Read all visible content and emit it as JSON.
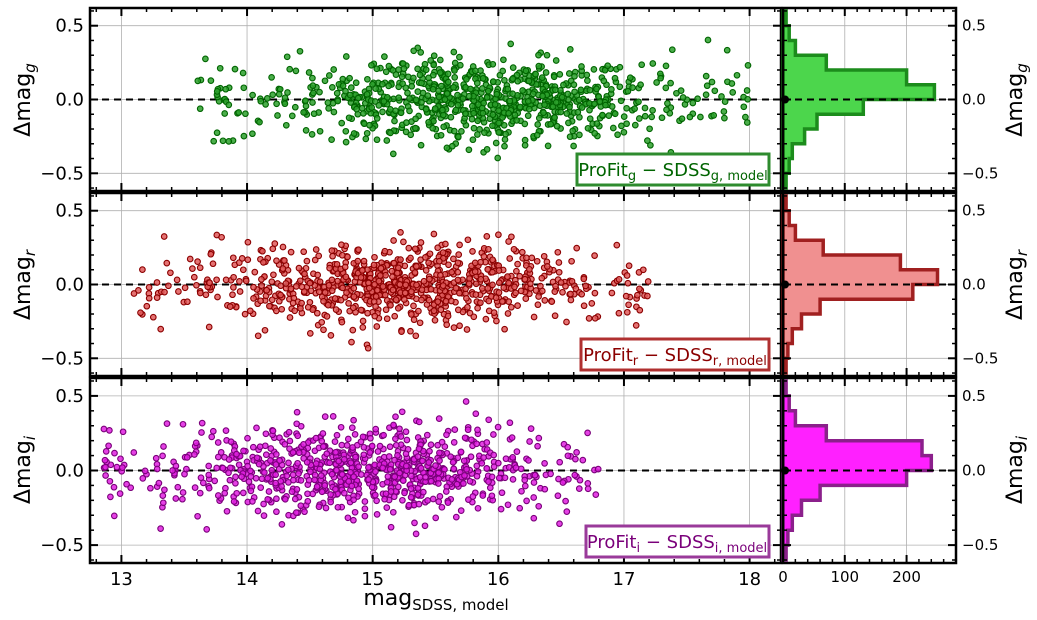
{
  "chart_data": [
    {
      "type": "scatter",
      "panel": "g",
      "ylabel": "Δmag_g",
      "ylabel_main": "Δmag",
      "ylabel_sub": "g",
      "xlim": [
        12.75,
        18.25
      ],
      "ylim": [
        -0.62,
        0.62
      ],
      "yticks": [
        -0.5,
        0.0,
        0.5
      ],
      "ytick_labels": [
        "−0.5",
        "0.0",
        "0.5"
      ],
      "reference_line_y": 0.0,
      "grid": true,
      "legend": {
        "main": "ProFit",
        "main_sub": "g",
        "minus": " − ",
        "ref": "SDSS",
        "ref_sub": "g, model",
        "location": "lower-right"
      },
      "color": "#2ca02c",
      "edge_color": "#006400",
      "approx_points": 900,
      "x_range": [
        13.6,
        18.0
      ],
      "x_peak": 15.8,
      "y_scatter_sigma": 0.14,
      "hist": {
        "bins": [
          -0.6,
          -0.5,
          -0.4,
          -0.3,
          -0.2,
          -0.1,
          0.0,
          0.1,
          0.2,
          0.3,
          0.4,
          0.5,
          0.6
        ],
        "counts": [
          5,
          10,
          15,
          35,
          55,
          130,
          245,
          200,
          70,
          20,
          10,
          5
        ],
        "fill": "#4cd64c",
        "edge": "#1c8c1c"
      }
    },
    {
      "type": "scatter",
      "panel": "r",
      "ylabel": "Δmag_r",
      "ylabel_main": "Δmag",
      "ylabel_sub": "r",
      "xlim": [
        12.75,
        18.25
      ],
      "ylim": [
        -0.62,
        0.62
      ],
      "yticks": [
        -0.5,
        0.0,
        0.5
      ],
      "ytick_labels": [
        "−0.5",
        "0.0",
        "0.5"
      ],
      "reference_line_y": 0.0,
      "grid": true,
      "legend": {
        "main": "ProFit",
        "main_sub": "r",
        "minus": " − ",
        "ref": "SDSS",
        "ref_sub": "r, model",
        "location": "lower-right"
      },
      "color": "#e05a5a",
      "edge_color": "#8b0000",
      "approx_points": 900,
      "x_range": [
        13.1,
        17.2
      ],
      "x_peak": 15.2,
      "y_scatter_sigma": 0.13,
      "hist": {
        "bins": [
          -0.6,
          -0.5,
          -0.4,
          -0.3,
          -0.2,
          -0.1,
          0.0,
          0.1,
          0.2,
          0.3,
          0.4,
          0.5,
          0.6
        ],
        "counts": [
          5,
          8,
          15,
          30,
          60,
          210,
          250,
          190,
          65,
          20,
          10,
          5
        ],
        "fill": "#f09090",
        "edge": "#a02020"
      }
    },
    {
      "type": "scatter",
      "panel": "i",
      "ylabel": "Δmag_i",
      "ylabel_main": "Δmag",
      "ylabel_sub": "i",
      "xlabel": "mag_SDSS, model",
      "xlabel_main": "mag",
      "xlabel_sub": "SDSS, model",
      "xlim": [
        12.75,
        18.25
      ],
      "ylim": [
        -0.62,
        0.62
      ],
      "xticks": [
        13,
        14,
        15,
        16,
        17,
        18
      ],
      "yticks": [
        -0.5,
        0.0,
        0.5
      ],
      "ytick_labels": [
        "−0.5",
        "0.0",
        "0.5"
      ],
      "reference_line_y": 0.0,
      "grid": true,
      "legend": {
        "main": "ProFit",
        "main_sub": "i",
        "minus": " − ",
        "ref": "SDSS",
        "ref_sub": "i, model",
        "location": "lower-right"
      },
      "color": "#e020e0",
      "edge_color": "#7a007a",
      "approx_points": 900,
      "x_range": [
        12.85,
        16.8
      ],
      "x_peak": 14.9,
      "y_scatter_sigma": 0.14,
      "hist": {
        "bins": [
          -0.6,
          -0.5,
          -0.4,
          -0.3,
          -0.2,
          -0.1,
          0.0,
          0.1,
          0.2,
          0.3,
          0.4,
          0.5,
          0.6
        ],
        "counts": [
          5,
          8,
          15,
          30,
          60,
          200,
          240,
          225,
          70,
          20,
          10,
          5
        ],
        "fill": "#ff20ff",
        "edge": "#8b208b"
      }
    }
  ],
  "hist_xaxis": {
    "xlim": [
      0,
      280
    ],
    "xticks": [
      0,
      100,
      200
    ],
    "xtick_labels": [
      "0",
      "100",
      "200"
    ]
  }
}
